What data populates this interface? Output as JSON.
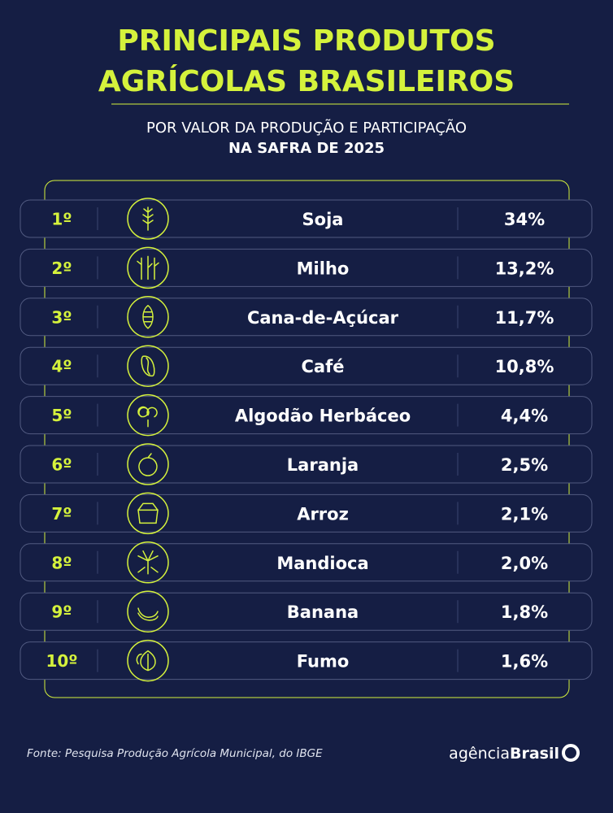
{
  "header": {
    "title": [
      "PRINCIPAIS PRODUTOS",
      "AGRÍCOLAS BRASILEIROS"
    ],
    "subtitle": [
      "POR VALOR DA PRODUÇÃO E PARTICIPAÇÃO",
      "NA SAFRA DE 2025"
    ]
  },
  "table": {
    "rows": [
      [
        "1º",
        "Soja",
        "34%"
      ],
      [
        "2º",
        "Milho",
        "13,2%"
      ],
      [
        "3º",
        "Cana-de-Açúcar",
        "11,7%"
      ],
      [
        "4º",
        "Café",
        "10,8%"
      ],
      [
        "5º",
        "Algodão Herbáceo",
        "4,4%"
      ],
      [
        "6º",
        "Laranja",
        "2,5%"
      ],
      [
        "7º",
        "Arroz",
        "2,1%"
      ],
      [
        "8º",
        "Mandioca",
        "2,0%"
      ],
      [
        "9º",
        "Banana",
        "1,8%"
      ],
      [
        "10º",
        "Fumo",
        "1,6%"
      ]
    ]
  },
  "footer": {
    "source": "Fonte: Pesquisa Produção Agrícola Municipal, do IBGE",
    "logo": [
      "agência",
      "Brasil"
    ]
  }
}
